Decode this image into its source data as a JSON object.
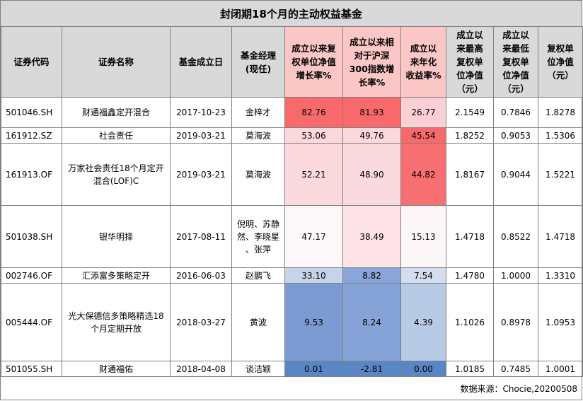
{
  "title": "封闭期18个月的主动权益基金",
  "headers": [
    "证券代码",
    "证券名称",
    "基金成立日",
    "基金经理\n(现任)",
    "成立以来复\n权单位净值\n增长率%",
    "成立以来相\n对于沪深\n300指数增\n长率%",
    "成立以\n来年化\n收益率%",
    "成立以\n来最高\n复权单\n位净值\n（元）",
    "成立以\n来最低\n复权单\n位净值\n（元）",
    "复权单\n位净值\n（元）"
  ],
  "rows": [
    {
      "code": "501046.SH",
      "name": "财通福鑫定开混合",
      "date": "2017-10-23",
      "manager": "金梓才",
      "nav_growth": "82.76",
      "rel_hs300": "81.93",
      "annual": "26.77",
      "max_nav": "2.1549",
      "min_nav": "0.7846",
      "nav": "1.8278"
    },
    {
      "code": "161912.SZ",
      "name": "社会责任",
      "date": "2019-03-21",
      "manager": "莫海波",
      "nav_growth": "53.06",
      "rel_hs300": "49.76",
      "annual": "45.54",
      "max_nav": "1.8252",
      "min_nav": "0.9053",
      "nav": "1.5306"
    },
    {
      "code": "161913.OF",
      "name": "万家社会责任18个月定开\n混合(LOF)C",
      "date": "2019-03-21",
      "manager": "莫海波",
      "nav_growth": "52.21",
      "rel_hs300": "48.90",
      "annual": "44.82",
      "max_nav": "1.8167",
      "min_nav": "0.9044",
      "nav": "1.5221"
    },
    {
      "code": "501038.SH",
      "name": "银华明择",
      "date": "2017-08-11",
      "manager": "倪明、苏静\n然、李晓星\n、张萍",
      "nav_growth": "47.17",
      "rel_hs300": "38.49",
      "annual": "15.13",
      "max_nav": "1.4718",
      "min_nav": "0.8522",
      "nav": "1.4718"
    },
    {
      "code": "002746.OF",
      "name": "汇添富多策略定开",
      "date": "2016-06-03",
      "manager": "赵鹏飞",
      "nav_growth": "33.10",
      "rel_hs300": "8.82",
      "annual": "7.54",
      "max_nav": "1.4780",
      "min_nav": "1.0000",
      "nav": "1.3310"
    },
    {
      "code": "005444.OF",
      "name": "光大保德信多策略精选18\n个月定期开放",
      "date": "2018-03-27",
      "manager": "黄波",
      "nav_growth": "9.53",
      "rel_hs300": "8.24",
      "annual": "4.39",
      "max_nav": "1.1026",
      "min_nav": "0.8978",
      "nav": "1.0953"
    },
    {
      "code": "501055.SH",
      "name": "财通福佑",
      "date": "2018-04-08",
      "manager": "谈洁颖",
      "nav_growth": "0.01",
      "rel_hs300": "-2.81",
      "annual": "0.00",
      "max_nav": "1.0185",
      "min_nav": "0.7485",
      "nav": "1.0001"
    }
  ],
  "heat_colors": {
    "nav_growth": [
      "#f8696b",
      "#fbd8dc",
      "#fbd9dd",
      "#fcf7f9",
      "#c6d4ea",
      "#7b9bd2",
      "#5a86c6"
    ],
    "rel_hs300": [
      "#f8696b",
      "#fbd8dc",
      "#fbdadf",
      "#fde3e7",
      "#88a6d7",
      "#85a3d6",
      "#5a86c6"
    ],
    "annual": [
      "#fbd0d5",
      "#f8696b",
      "#f86f72",
      "#fcf6f8",
      "#d3ddef",
      "#b8cbe6",
      "#5a86c6"
    ]
  },
  "footer": "数据来源：Chocie,20200508"
}
